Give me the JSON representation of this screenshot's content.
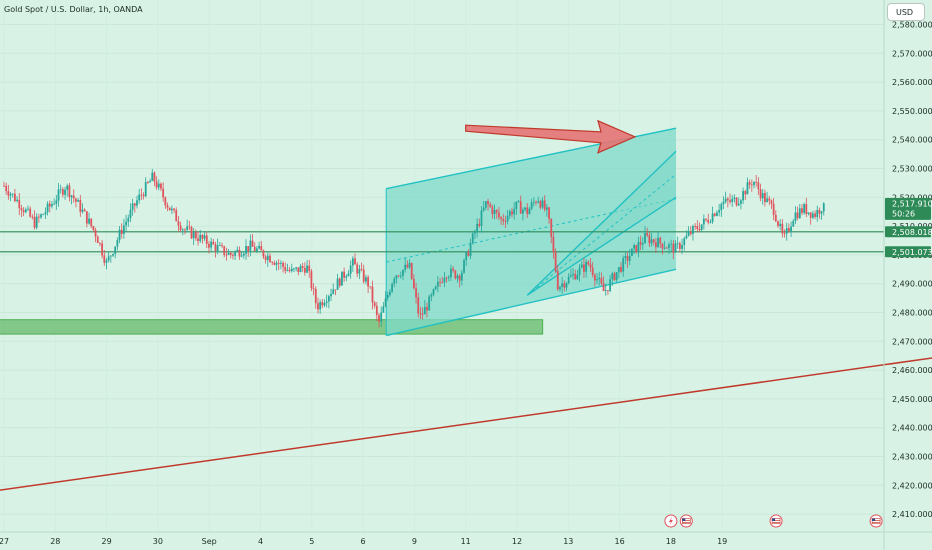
{
  "header": {
    "symbol_title": "Gold Spot / U.S. Dollar, 1h, OANDA"
  },
  "currency_button": "USD",
  "price_tags": {
    "current": {
      "price": "2,517.910",
      "countdown": "50:26",
      "color": "#2e8b57"
    },
    "line_upper": {
      "price": "2,508.018",
      "color": "#2e8b57"
    },
    "line_lower": {
      "price": "2,501.073",
      "color": "#2e8b57"
    }
  },
  "colors": {
    "background": "#d8f3e6",
    "candle_up": "#26a69a",
    "candle_down": "#e0525c",
    "channel_stroke": "#22c1c3",
    "channel_fill": "#7fd9c9",
    "support_zone": "#66bb6a",
    "trendline": "#c0392b",
    "arrow_fill": "#e57373",
    "arrow_stroke": "#c0392b",
    "horizontal_lines": "#2e8b57"
  },
  "event_icons": [
    "lightning-icon",
    "us-flag-icon",
    "us-flag-icon",
    "us-flag-icon"
  ],
  "chart_data": {
    "type": "candlestick",
    "title": "Gold Spot / U.S. Dollar, 1h, OANDA",
    "currency": "USD",
    "timeframe": "1h",
    "y_axis": {
      "range": [
        2405,
        2585
      ],
      "ticks": [
        2410,
        2420,
        2430,
        2440,
        2450,
        2460,
        2470,
        2480,
        2490,
        2500,
        2510,
        2520,
        2530,
        2540,
        2550,
        2560,
        2570,
        2580
      ],
      "tick_labels": [
        "2,410.000",
        "2,420.000",
        "2,430.000",
        "2,440.000",
        "2,450.000",
        "2,460.000",
        "2,470.000",
        "2,480.000",
        "2,490.000",
        "2,500.000",
        "2,510.000",
        "2,520.000",
        "2,530.000",
        "2,540.000",
        "2,550.000",
        "2,560.000",
        "2,570.000",
        "2,580.000"
      ]
    },
    "x_axis": {
      "dates": [
        "Aug 27",
        "Aug 28",
        "Aug 29",
        "Aug 30",
        "Sep 2",
        "Sep 4",
        "Sep 5",
        "Sep 6",
        "Sep 9",
        "Sep 11",
        "Sep 12",
        "Sep 13",
        "Sep 16",
        "Sep 18",
        "Sep 19"
      ],
      "tick_labels": [
        "27",
        "28",
        "29",
        "30",
        "Sep",
        "4",
        "5",
        "6",
        "9",
        "11",
        "12",
        "13",
        "16",
        "18",
        "19"
      ],
      "tick_day_index": [
        0,
        1,
        2,
        3,
        4,
        5,
        6,
        7,
        8,
        9,
        10,
        11,
        12,
        13,
        14
      ]
    },
    "price_path": [
      [
        0,
        2524
      ],
      [
        0.3,
        2518
      ],
      [
        0.6,
        2511
      ],
      [
        0.9,
        2517
      ],
      [
        1.2,
        2524
      ],
      [
        1.5,
        2516
      ],
      [
        1.8,
        2507
      ],
      [
        2.0,
        2497
      ],
      [
        2.3,
        2509
      ],
      [
        2.6,
        2519
      ],
      [
        2.9,
        2527
      ],
      [
        3.2,
        2517
      ],
      [
        3.5,
        2509
      ],
      [
        4.0,
        2504
      ],
      [
        4.4,
        2500
      ],
      [
        4.8,
        2503
      ],
      [
        5.2,
        2499
      ],
      [
        5.6,
        2494
      ],
      [
        5.9,
        2496
      ],
      [
        6.1,
        2482
      ],
      [
        6.4,
        2488
      ],
      [
        6.8,
        2497
      ],
      [
        7.1,
        2490
      ],
      [
        7.3,
        2476
      ],
      [
        7.6,
        2493
      ],
      [
        7.9,
        2496
      ],
      [
        8.1,
        2478
      ],
      [
        8.3,
        2484
      ],
      [
        8.6,
        2494
      ],
      [
        8.9,
        2493
      ],
      [
        9.1,
        2504
      ],
      [
        9.4,
        2518
      ],
      [
        9.7,
        2512
      ],
      [
        10.0,
        2517
      ],
      [
        10.2,
        2515
      ],
      [
        10.4,
        2520
      ],
      [
        10.6,
        2514
      ],
      [
        10.8,
        2489
      ],
      [
        11.1,
        2493
      ],
      [
        11.4,
        2497
      ],
      [
        11.7,
        2487
      ],
      [
        11.9,
        2493
      ],
      [
        12.2,
        2500
      ],
      [
        12.5,
        2506
      ],
      [
        12.8,
        2504
      ],
      [
        13.1,
        2502
      ],
      [
        13.4,
        2508
      ],
      [
        13.7,
        2512
      ],
      [
        14.0,
        2518
      ],
      [
        14.3,
        2519
      ],
      [
        14.6,
        2526
      ],
      [
        14.8,
        2520
      ],
      [
        15.0,
        2516
      ],
      [
        15.2,
        2505
      ],
      [
        15.4,
        2514
      ],
      [
        15.6,
        2516
      ],
      [
        15.8,
        2514
      ],
      [
        16.0,
        2518
      ]
    ],
    "horizontal_lines": [
      2508.018,
      2501.073
    ],
    "current_price": 2517.91,
    "support_zone": {
      "y_range": [
        2472.5,
        2477.5
      ],
      "day_range": [
        -1,
        10.5
      ]
    },
    "channel_large": {
      "lower": [
        [
          7.45,
          2472
        ],
        [
          13.1,
          2495
        ]
      ],
      "upper": [
        [
          7.45,
          2523
        ],
        [
          13.1,
          2544
        ]
      ]
    },
    "channel_small": {
      "lower": [
        [
          10.2,
          2486
        ],
        [
          13.1,
          2520
        ]
      ],
      "upper": [
        [
          10.2,
          2486
        ],
        [
          13.1,
          2536
        ]
      ]
    },
    "trendline": {
      "points": [
        [
          -0.2,
          2418
        ],
        [
          18.4,
          2465
        ]
      ]
    },
    "arrow": {
      "from": [
        9.0,
        2544
      ],
      "to": [
        12.3,
        2541
      ]
    },
    "event_days": [
      13.0,
      13.3,
      15.05,
      17.0
    ]
  }
}
